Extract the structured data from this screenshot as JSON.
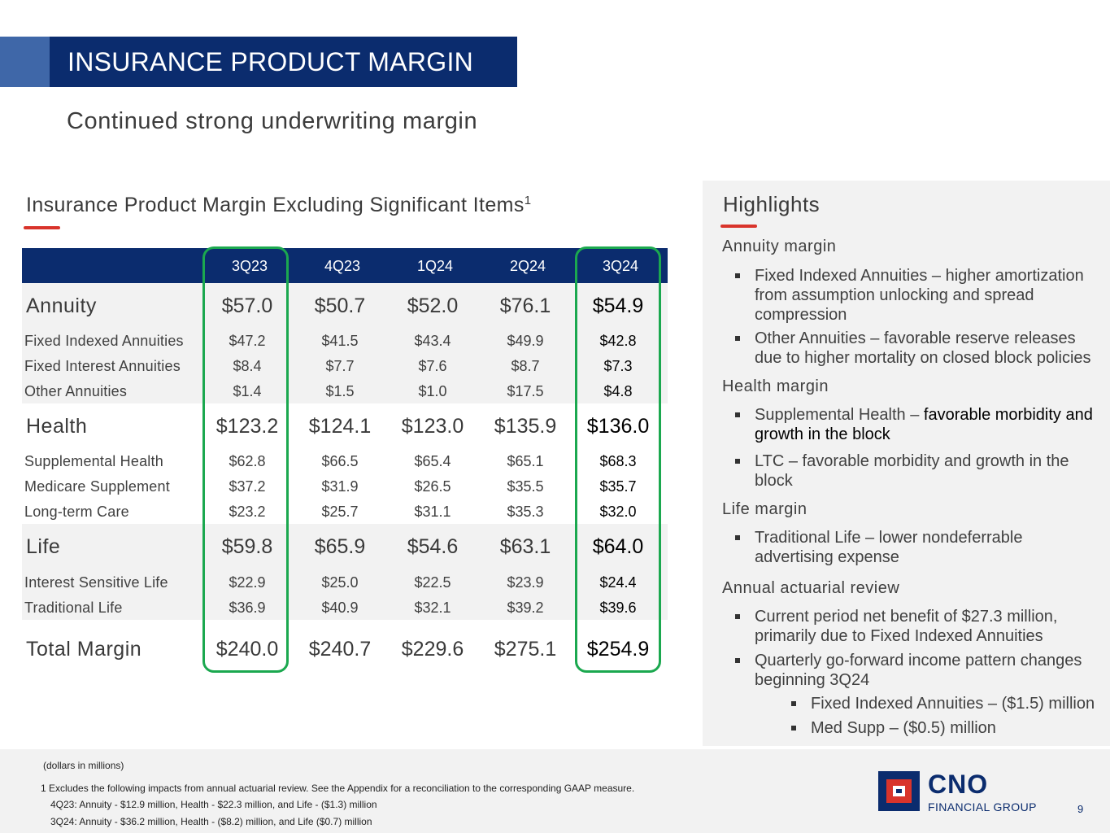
{
  "header": {
    "title": "INSURANCE PRODUCT MARGIN",
    "subtitle": "Continued strong underwriting margin"
  },
  "table": {
    "title": "Insurance Product Margin Excluding Significant Items",
    "title_superscript": "1",
    "columns": [
      "3Q23",
      "4Q23",
      "1Q24",
      "2Q24",
      "3Q24"
    ],
    "rows": [
      {
        "label": "Annuity",
        "type": "category",
        "values": [
          "$57.0",
          "$50.7",
          "$52.0",
          "$76.1",
          "$54.9"
        ]
      },
      {
        "label": "Fixed Indexed Annuities",
        "type": "sub",
        "values": [
          "$47.2",
          "$41.5",
          "$43.4",
          "$49.9",
          "$42.8"
        ]
      },
      {
        "label": "Fixed Interest Annuities",
        "type": "sub",
        "values": [
          "$8.4",
          "$7.7",
          "$7.6",
          "$8.7",
          "$7.3"
        ]
      },
      {
        "label": "Other Annuities",
        "type": "sub",
        "values": [
          "$1.4",
          "$1.5",
          "$1.0",
          "$17.5",
          "$4.8"
        ]
      },
      {
        "label": "Health",
        "type": "category",
        "values": [
          "$123.2",
          "$124.1",
          "$123.0",
          "$135.9",
          "$136.0"
        ]
      },
      {
        "label": "Supplemental Health",
        "type": "sub",
        "values": [
          "$62.8",
          "$66.5",
          "$65.4",
          "$65.1",
          "$68.3"
        ]
      },
      {
        "label": "Medicare Supplement",
        "type": "sub",
        "values": [
          "$37.2",
          "$31.9",
          "$26.5",
          "$35.5",
          "$35.7"
        ]
      },
      {
        "label": "Long-term Care",
        "type": "sub",
        "values": [
          "$23.2",
          "$25.7",
          "$31.1",
          "$35.3",
          "$32.0"
        ]
      },
      {
        "label": "Life",
        "type": "category",
        "values": [
          "$59.8",
          "$65.9",
          "$54.6",
          "$63.1",
          "$64.0"
        ]
      },
      {
        "label": "Interest Sensitive Life",
        "type": "sub",
        "values": [
          "$22.9",
          "$25.0",
          "$22.5",
          "$23.9",
          "$24.4"
        ]
      },
      {
        "label": "Traditional Life",
        "type": "sub",
        "values": [
          "$36.9",
          "$40.9",
          "$32.1",
          "$39.2",
          "$39.6"
        ]
      },
      {
        "label": "Total Margin",
        "type": "category",
        "values": [
          "$240.0",
          "$240.7",
          "$229.6",
          "$275.1",
          "$254.9"
        ]
      }
    ]
  },
  "highlights": {
    "title": "Highlights",
    "annuity_heading": "Annuity margin",
    "annuity_b1": "Fixed Indexed Annuities – higher amortization from assumption unlocking and spread compression",
    "annuity_b2": "Other Annuities – favorable reserve releases due to higher mortality on closed block policies",
    "health_heading": "Health margin",
    "health_b1_a": "Supplemental Health – ",
    "health_b1_b": "favorable morbidity and growth in the block",
    "health_b2": "LTC – favorable morbidity and growth in the block",
    "life_heading": "Life margin",
    "life_b1": "Traditional Life – lower nondeferrable advertising expense",
    "review_heading": "Annual actuarial review",
    "review_b1": "Current period net benefit of $27.3 million, primarily due to Fixed Indexed Annuities",
    "review_b2": "Quarterly go-forward income pattern changes beginning 3Q24",
    "review_sub1": "Fixed Indexed Annuities – ($1.5) million",
    "review_sub2": "Med Supp – ($0.5) million"
  },
  "footer": {
    "units": "(dollars in millions)",
    "note1": "1 Excludes the following impacts from annual actuarial review. See the Appendix for a reconciliation to the corresponding GAAP measure.",
    "note2": "4Q23:  Annuity - $12.9 million, Health - $22.3 million, and Life - ($1.3) million",
    "note3": "3Q24:  Annuity - $36.2 million, Health - ($8.2) million, and Life ($0.7) million",
    "logo_word": "CNO",
    "logo_sub": "FINANCIAL GROUP",
    "page_number": "9"
  },
  "colors": {
    "navy": "#0b2c6e",
    "accent_blue": "#3f67a8",
    "red": "#d9342b",
    "green": "#1ba84f",
    "band_gray": "#f2f2f2"
  }
}
